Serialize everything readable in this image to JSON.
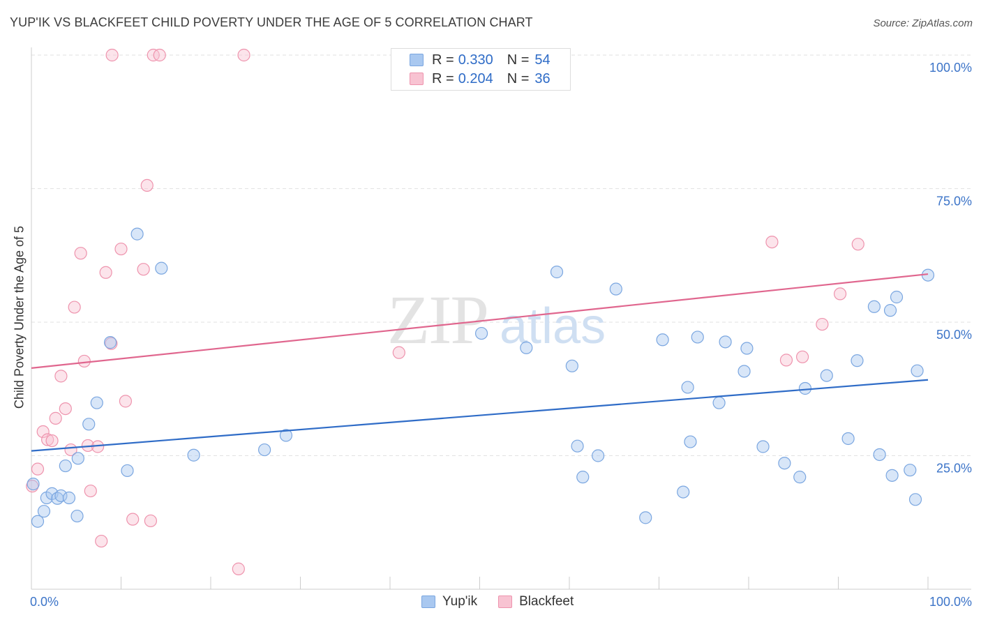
{
  "title": "YUP'IK VS BLACKFEET CHILD POVERTY UNDER THE AGE OF 5 CORRELATION CHART",
  "source": "Source: ZipAtlas.com",
  "watermark": {
    "zip": "ZIP",
    "atlas": "atlas"
  },
  "legend_top": {
    "rows": [
      {
        "r_label": "R =",
        "r_value": "0.330",
        "n_label": "N =",
        "n_value": "54",
        "color": "#a9c8f0",
        "border": "#7aa6e0"
      },
      {
        "r_label": "R =",
        "r_value": "0.204",
        "n_label": "N =",
        "n_value": "36",
        "color": "#f8c3d2",
        "border": "#ee93ad"
      }
    ]
  },
  "legend_bottom": [
    {
      "label": "Yup'ik",
      "color": "#a9c8f0",
      "border": "#7aa6e0"
    },
    {
      "label": "Blackfeet",
      "color": "#f8c3d2",
      "border": "#ee93ad"
    }
  ],
  "colors": {
    "yupik_fill": "rgba(169,200,240,0.45)",
    "yupik_stroke": "#7aa6e0",
    "yupik_line": "#2f6cc7",
    "blackfeet_fill": "rgba(248,195,210,0.45)",
    "blackfeet_stroke": "#ee93ad",
    "blackfeet_line": "#e0668e",
    "tick_text": "#3c74c8",
    "grid": "#e2e2e2"
  },
  "chart_data": {
    "type": "scatter",
    "xlabel": "",
    "ylabel": "Child Poverty Under the Age of 5",
    "xlim": [
      0,
      100
    ],
    "ylim": [
      0,
      100
    ],
    "x_tick_labels": [
      "0.0%",
      "100.0%"
    ],
    "y_ticks": [
      25,
      50,
      75,
      100
    ],
    "y_tick_labels": [
      "25.0%",
      "50.0%",
      "75.0%",
      "100.0%"
    ],
    "grid": true,
    "series": [
      {
        "name": "Yup'ik",
        "points": [
          [
            0.2,
            19.7
          ],
          [
            0.7,
            12.7
          ],
          [
            1.4,
            14.6
          ],
          [
            1.7,
            17.1
          ],
          [
            2.3,
            17.9
          ],
          [
            2.9,
            17.0
          ],
          [
            3.3,
            17.5
          ],
          [
            3.8,
            23.1
          ],
          [
            4.2,
            17.1
          ],
          [
            5.1,
            13.7
          ],
          [
            5.2,
            24.5
          ],
          [
            6.4,
            30.9
          ],
          [
            7.3,
            34.9
          ],
          [
            8.8,
            46.2
          ],
          [
            10.7,
            22.2
          ],
          [
            11.8,
            66.5
          ],
          [
            14.5,
            60.1
          ],
          [
            18.1,
            25.1
          ],
          [
            26.0,
            26.1
          ],
          [
            28.4,
            28.8
          ],
          [
            50.2,
            47.9
          ],
          [
            55.2,
            45.2
          ],
          [
            58.6,
            59.4
          ],
          [
            60.3,
            41.8
          ],
          [
            60.9,
            26.8
          ],
          [
            61.5,
            21.0
          ],
          [
            63.2,
            25.0
          ],
          [
            65.2,
            56.2
          ],
          [
            68.5,
            13.4
          ],
          [
            70.4,
            46.7
          ],
          [
            72.7,
            18.2
          ],
          [
            73.2,
            37.8
          ],
          [
            73.5,
            27.6
          ],
          [
            74.3,
            47.2
          ],
          [
            76.7,
            34.9
          ],
          [
            77.4,
            46.3
          ],
          [
            79.5,
            40.8
          ],
          [
            79.8,
            45.1
          ],
          [
            81.6,
            26.7
          ],
          [
            84.0,
            23.6
          ],
          [
            85.7,
            21.0
          ],
          [
            86.3,
            37.6
          ],
          [
            88.7,
            40.0
          ],
          [
            91.1,
            28.2
          ],
          [
            92.1,
            42.8
          ],
          [
            94.0,
            52.9
          ],
          [
            94.6,
            25.2
          ],
          [
            95.8,
            52.2
          ],
          [
            96.0,
            21.3
          ],
          [
            96.5,
            54.7
          ],
          [
            98.0,
            22.3
          ],
          [
            98.6,
            16.8
          ],
          [
            98.8,
            40.9
          ],
          [
            100.0,
            58.8
          ]
        ],
        "trend": [
          [
            0,
            25.9
          ],
          [
            100,
            39.2
          ]
        ]
      },
      {
        "name": "Blackfeet",
        "points": [
          [
            0.1,
            19.3
          ],
          [
            0.7,
            22.5
          ],
          [
            1.3,
            29.5
          ],
          [
            1.8,
            28.0
          ],
          [
            2.3,
            27.8
          ],
          [
            2.7,
            32.0
          ],
          [
            3.3,
            39.9
          ],
          [
            3.8,
            33.8
          ],
          [
            4.4,
            26.1
          ],
          [
            4.8,
            52.8
          ],
          [
            5.5,
            62.9
          ],
          [
            5.9,
            42.7
          ],
          [
            6.3,
            26.9
          ],
          [
            6.6,
            18.4
          ],
          [
            7.4,
            26.7
          ],
          [
            7.8,
            9.0
          ],
          [
            8.3,
            59.3
          ],
          [
            8.9,
            46.0
          ],
          [
            9.0,
            100.0
          ],
          [
            10.0,
            63.7
          ],
          [
            10.5,
            35.2
          ],
          [
            11.3,
            13.1
          ],
          [
            12.5,
            59.9
          ],
          [
            12.9,
            75.6
          ],
          [
            13.3,
            12.8
          ],
          [
            13.6,
            100.0
          ],
          [
            14.3,
            100.0
          ],
          [
            23.1,
            3.8
          ],
          [
            23.7,
            100.0
          ],
          [
            41.0,
            44.3
          ],
          [
            82.6,
            65.0
          ],
          [
            84.2,
            42.9
          ],
          [
            86.0,
            43.5
          ],
          [
            88.2,
            49.6
          ],
          [
            90.2,
            55.3
          ],
          [
            92.2,
            64.6
          ]
        ],
        "trend": [
          [
            0,
            41.4
          ],
          [
            100,
            59.0
          ]
        ]
      }
    ]
  }
}
